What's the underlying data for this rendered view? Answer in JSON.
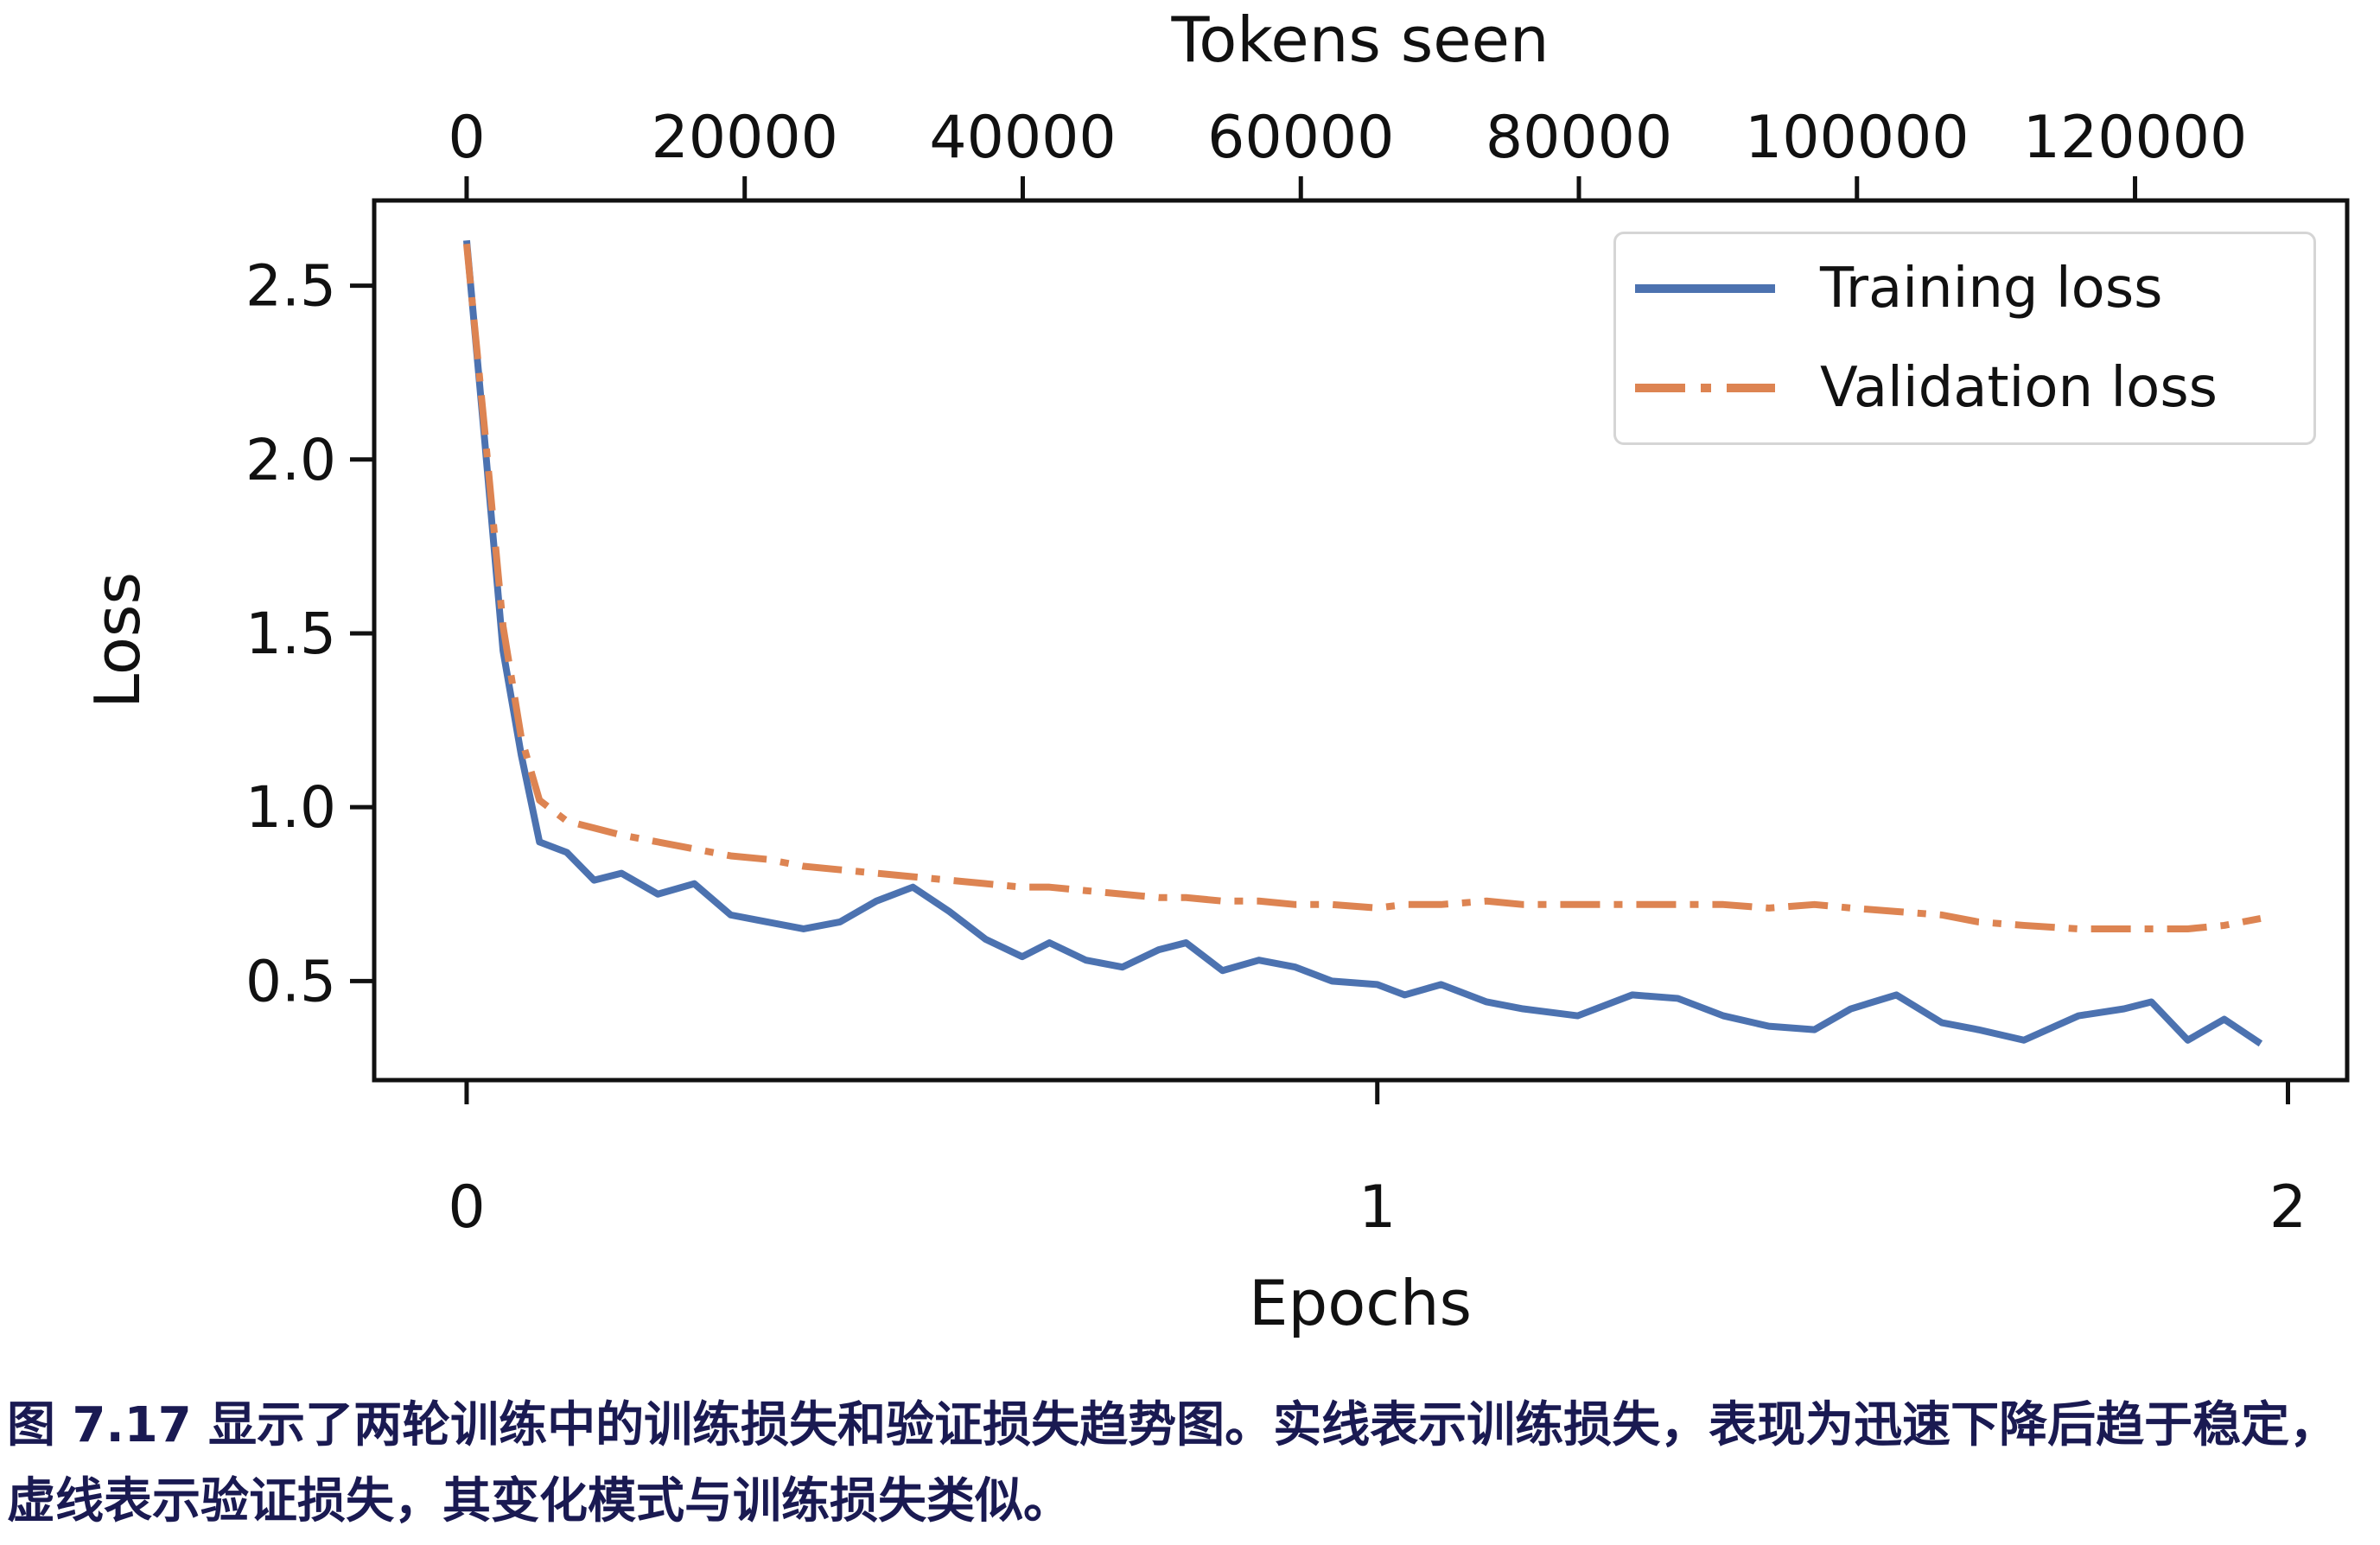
{
  "chart_data": {
    "type": "line",
    "top_axis_title": "Tokens seen",
    "xlabel": "Epochs",
    "ylabel": "Loss",
    "x_epochs": [
      0.0,
      0.02,
      0.04,
      0.06,
      0.08,
      0.11,
      0.14,
      0.17,
      0.21,
      0.25,
      0.29,
      0.33,
      0.37,
      0.41,
      0.45,
      0.49,
      0.53,
      0.57,
      0.61,
      0.64,
      0.68,
      0.72,
      0.76,
      0.79,
      0.83,
      0.87,
      0.91,
      0.95,
      1.0,
      1.03,
      1.07,
      1.12,
      1.16,
      1.22,
      1.28,
      1.33,
      1.38,
      1.43,
      1.48,
      1.52,
      1.57,
      1.62,
      1.66,
      1.71,
      1.77,
      1.82,
      1.85,
      1.89,
      1.93,
      1.97
    ],
    "series": [
      {
        "name": "Training loss",
        "color": "#4c72b0",
        "line_style": "solid",
        "values": [
          2.63,
          2.05,
          1.45,
          1.15,
          0.9,
          0.87,
          0.79,
          0.81,
          0.75,
          0.78,
          0.69,
          0.67,
          0.65,
          0.67,
          0.73,
          0.77,
          0.7,
          0.62,
          0.57,
          0.61,
          0.56,
          0.54,
          0.59,
          0.61,
          0.53,
          0.56,
          0.54,
          0.5,
          0.49,
          0.46,
          0.49,
          0.44,
          0.42,
          0.4,
          0.46,
          0.45,
          0.4,
          0.37,
          0.36,
          0.42,
          0.46,
          0.38,
          0.36,
          0.33,
          0.4,
          0.42,
          0.44,
          0.33,
          0.39,
          0.32
        ]
      },
      {
        "name": "Validation loss",
        "color": "#dd8452",
        "line_style": "dashdot",
        "values": [
          2.62,
          2.08,
          1.52,
          1.2,
          1.02,
          0.96,
          0.94,
          0.92,
          0.9,
          0.88,
          0.86,
          0.85,
          0.83,
          0.82,
          0.81,
          0.8,
          0.79,
          0.78,
          0.77,
          0.77,
          0.76,
          0.75,
          0.74,
          0.74,
          0.73,
          0.73,
          0.72,
          0.72,
          0.71,
          0.72,
          0.72,
          0.73,
          0.72,
          0.72,
          0.72,
          0.72,
          0.72,
          0.71,
          0.72,
          0.71,
          0.7,
          0.69,
          0.67,
          0.66,
          0.65,
          0.65,
          0.65,
          0.65,
          0.66,
          0.68
        ]
      }
    ],
    "axes": {
      "xlim": [
        -0.1015,
        2.065
      ],
      "ylim": [
        0.215,
        2.745
      ],
      "x_ticks": [
        0,
        1,
        2
      ],
      "y_ticks": [
        0.5,
        1.0,
        1.5,
        2.0,
        2.5
      ],
      "top_axis_ticks": [
        0,
        20000,
        40000,
        60000,
        80000,
        100000,
        120000
      ],
      "tokens_per_epoch": 65500,
      "grid": false,
      "legend_position": "upper right"
    }
  },
  "caption": {
    "line1": "图 7.17 显示了两轮训练中的训练损失和验证损失趋势图。实线表示训练损失，表现为迅速下降后趋于稳定，",
    "line2": "虚线表示验证损失，其变化模式与训练损失类似。"
  }
}
